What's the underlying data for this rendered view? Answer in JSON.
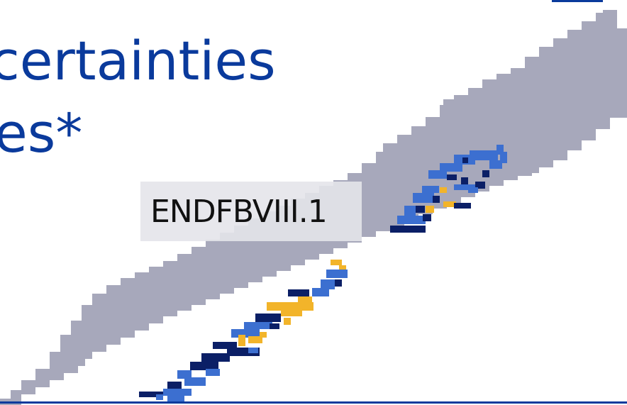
{
  "title": {
    "line1": "certainties",
    "line2": "es*"
  },
  "dataset_label": "ENDFBVIII.1",
  "colors": {
    "title": "#0a3a9c",
    "band": "#a7a8bb",
    "cell_blue": "#3c6fd0",
    "cell_navy": "#0b1f66",
    "cell_gold": "#f2b42a",
    "label_bg": "#e4e4ea",
    "rule": "#0a3a9c"
  }
}
